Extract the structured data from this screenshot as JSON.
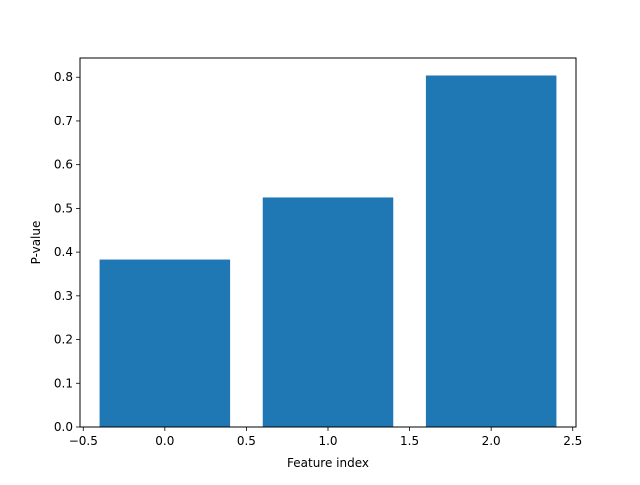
{
  "chart_data": {
    "type": "bar",
    "x": [
      0,
      1,
      2
    ],
    "values": [
      0.383,
      0.525,
      0.804
    ],
    "xlabel": "Feature index",
    "ylabel": "P-value",
    "title": "",
    "xlim": [
      -0.52,
      2.52
    ],
    "ylim": [
      0,
      0.844
    ],
    "bar_width": 0.8,
    "xticks": [
      -0.5,
      0.0,
      0.5,
      1.0,
      1.5,
      2.0,
      2.5
    ],
    "xtick_labels": [
      "−0.5",
      "0.0",
      "0.5",
      "1.0",
      "1.5",
      "2.0",
      "2.5"
    ],
    "yticks": [
      0.0,
      0.1,
      0.2,
      0.3,
      0.4,
      0.5,
      0.6,
      0.7,
      0.8
    ],
    "ytick_labels": [
      "0.0",
      "0.1",
      "0.2",
      "0.3",
      "0.4",
      "0.5",
      "0.6",
      "0.7",
      "0.8"
    ],
    "grid": false,
    "legend": "none",
    "bar_color": "#1f77b4"
  }
}
